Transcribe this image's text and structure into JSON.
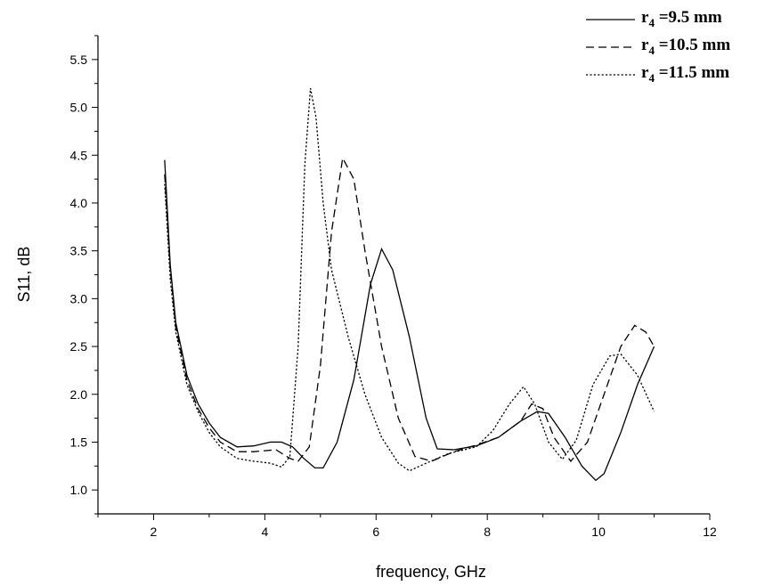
{
  "chart_data": {
    "type": "line",
    "title": "",
    "xlabel": "frequency, GHz",
    "ylabel": "S11, dB",
    "xlim": [
      1,
      12
    ],
    "ylim": [
      0.75,
      5.75
    ],
    "xticks": [
      2,
      4,
      6,
      8,
      10,
      12
    ],
    "yticks": [
      1.0,
      1.5,
      2.0,
      2.5,
      3.0,
      3.5,
      4.0,
      4.5,
      5.0,
      5.5
    ],
    "xtick_labels": [
      "2",
      "4",
      "6",
      "8",
      "10",
      "12"
    ],
    "ytick_labels": [
      "1.0",
      "1.5",
      "2.0",
      "2.5",
      "3.0",
      "3.5",
      "4.0",
      "4.5",
      "5.0",
      "5.5"
    ],
    "grid": false,
    "legend_position": "top-right",
    "series": [
      {
        "name": "9.5 mm",
        "label_var": "r",
        "label_sub": "4",
        "label_eq": "=",
        "dash": "solid",
        "points": [
          [
            2.2,
            4.45
          ],
          [
            2.3,
            3.35
          ],
          [
            2.4,
            2.75
          ],
          [
            2.6,
            2.2
          ],
          [
            2.8,
            1.9
          ],
          [
            3.0,
            1.7
          ],
          [
            3.2,
            1.55
          ],
          [
            3.5,
            1.45
          ],
          [
            3.8,
            1.46
          ],
          [
            4.1,
            1.5
          ],
          [
            4.3,
            1.5
          ],
          [
            4.5,
            1.45
          ],
          [
            4.7,
            1.33
          ],
          [
            4.9,
            1.23
          ],
          [
            5.05,
            1.23
          ],
          [
            5.3,
            1.5
          ],
          [
            5.6,
            2.15
          ],
          [
            5.9,
            3.15
          ],
          [
            6.1,
            3.52
          ],
          [
            6.3,
            3.3
          ],
          [
            6.6,
            2.6
          ],
          [
            6.9,
            1.75
          ],
          [
            7.1,
            1.43
          ],
          [
            7.4,
            1.42
          ],
          [
            7.8,
            1.46
          ],
          [
            8.2,
            1.55
          ],
          [
            8.6,
            1.72
          ],
          [
            8.9,
            1.82
          ],
          [
            9.1,
            1.8
          ],
          [
            9.4,
            1.55
          ],
          [
            9.7,
            1.25
          ],
          [
            9.95,
            1.1
          ],
          [
            10.1,
            1.17
          ],
          [
            10.4,
            1.6
          ],
          [
            10.7,
            2.1
          ],
          [
            11.0,
            2.5
          ]
        ]
      },
      {
        "name": "10.5 mm",
        "label_var": "r",
        "label_sub": "4",
        "label_eq": "=",
        "dash": "dashed",
        "points": [
          [
            2.2,
            4.3
          ],
          [
            2.3,
            3.3
          ],
          [
            2.4,
            2.7
          ],
          [
            2.6,
            2.15
          ],
          [
            2.8,
            1.85
          ],
          [
            3.0,
            1.65
          ],
          [
            3.2,
            1.5
          ],
          [
            3.5,
            1.4
          ],
          [
            3.8,
            1.4
          ],
          [
            4.2,
            1.42
          ],
          [
            4.45,
            1.33
          ],
          [
            4.6,
            1.3
          ],
          [
            4.8,
            1.45
          ],
          [
            5.0,
            2.3
          ],
          [
            5.2,
            3.7
          ],
          [
            5.4,
            4.47
          ],
          [
            5.6,
            4.25
          ],
          [
            5.8,
            3.5
          ],
          [
            6.1,
            2.5
          ],
          [
            6.4,
            1.75
          ],
          [
            6.7,
            1.35
          ],
          [
            7.0,
            1.3
          ],
          [
            7.4,
            1.4
          ],
          [
            7.8,
            1.47
          ],
          [
            8.2,
            1.55
          ],
          [
            8.6,
            1.72
          ],
          [
            8.8,
            1.9
          ],
          [
            9.0,
            1.85
          ],
          [
            9.2,
            1.55
          ],
          [
            9.5,
            1.3
          ],
          [
            9.8,
            1.5
          ],
          [
            10.1,
            2.0
          ],
          [
            10.4,
            2.5
          ],
          [
            10.65,
            2.72
          ],
          [
            10.85,
            2.65
          ],
          [
            11.0,
            2.5
          ]
        ]
      },
      {
        "name": "11.5 mm",
        "label_var": "r",
        "label_sub": "4",
        "label_eq": "=",
        "dash": "dotted",
        "points": [
          [
            2.2,
            4.2
          ],
          [
            2.3,
            3.2
          ],
          [
            2.4,
            2.65
          ],
          [
            2.6,
            2.1
          ],
          [
            2.8,
            1.82
          ],
          [
            3.0,
            1.6
          ],
          [
            3.2,
            1.45
          ],
          [
            3.5,
            1.33
          ],
          [
            3.8,
            1.3
          ],
          [
            4.1,
            1.28
          ],
          [
            4.3,
            1.24
          ],
          [
            4.45,
            1.35
          ],
          [
            4.6,
            2.5
          ],
          [
            4.72,
            4.4
          ],
          [
            4.82,
            5.2
          ],
          [
            4.92,
            4.9
          ],
          [
            5.05,
            4.0
          ],
          [
            5.2,
            3.3
          ],
          [
            5.5,
            2.6
          ],
          [
            5.8,
            2.0
          ],
          [
            6.1,
            1.55
          ],
          [
            6.4,
            1.28
          ],
          [
            6.6,
            1.2
          ],
          [
            6.9,
            1.28
          ],
          [
            7.3,
            1.38
          ],
          [
            7.8,
            1.45
          ],
          [
            8.1,
            1.62
          ],
          [
            8.4,
            1.9
          ],
          [
            8.65,
            2.08
          ],
          [
            8.85,
            1.9
          ],
          [
            9.1,
            1.5
          ],
          [
            9.35,
            1.32
          ],
          [
            9.6,
            1.52
          ],
          [
            9.9,
            2.1
          ],
          [
            10.2,
            2.4
          ],
          [
            10.4,
            2.42
          ],
          [
            10.7,
            2.2
          ],
          [
            11.0,
            1.82
          ]
        ]
      }
    ]
  }
}
